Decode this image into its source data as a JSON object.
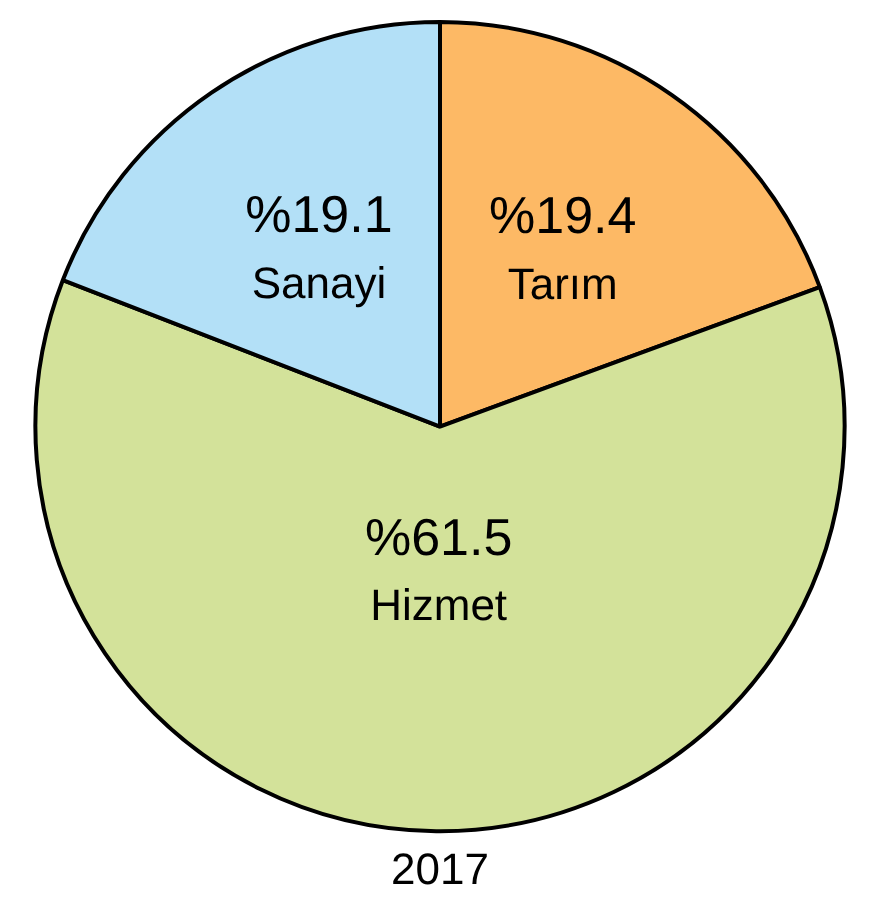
{
  "chart_data": {
    "type": "pie",
    "title": "2017",
    "categories": [
      "Tarım",
      "Hizmet",
      "Sanayi"
    ],
    "values": [
      19.4,
      61.5,
      19.1
    ],
    "colors": [
      "#fdb965",
      "#d3e29a",
      "#b3e0f7"
    ],
    "value_labels": [
      "%19.4",
      "%61.5",
      "%19.1"
    ],
    "legend": false
  }
}
